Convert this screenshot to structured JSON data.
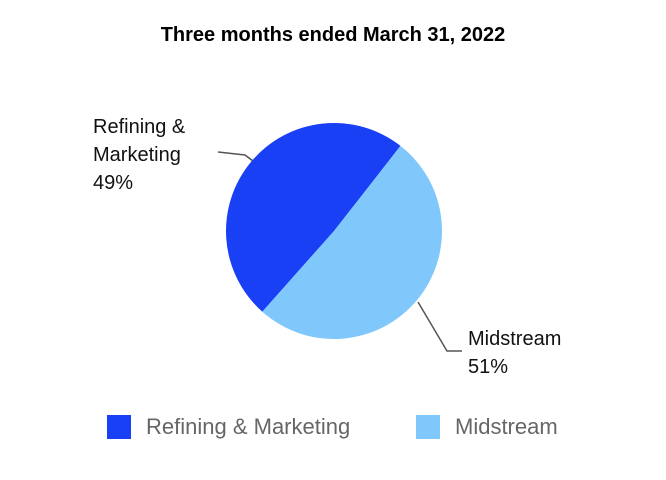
{
  "chart_data": {
    "type": "pie",
    "title": "Three months ended March 31, 2022",
    "categories": [
      "Refining & Marketing",
      "Midstream"
    ],
    "values": [
      49,
      51
    ],
    "value_labels": [
      "49%",
      "51%"
    ],
    "colors": [
      "#1a40f5",
      "#80c8fb"
    ],
    "legend": "bottom"
  }
}
